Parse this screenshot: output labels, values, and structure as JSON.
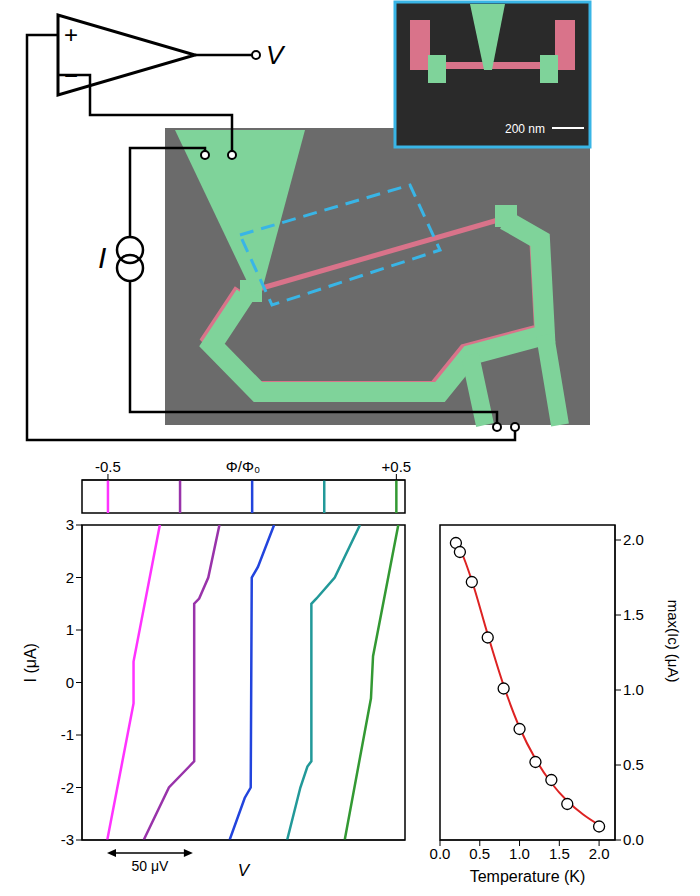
{
  "diagram": {
    "output_label": "V",
    "current_label": "I",
    "plus": "+",
    "minus": "−",
    "inset_scale_bar": "200 nm"
  },
  "chart_data": [
    {
      "type": "marker_strip",
      "xlabel": "Φ/Φ₀",
      "xlim": [
        -0.59,
        0.53
      ],
      "xticks": [
        -0.5,
        {
          "value": 0.5,
          "label": "+0.5"
        }
      ],
      "x": [
        -0.5,
        -0.25,
        0,
        0.25,
        0.5
      ],
      "colors": [
        "#ff33ff",
        "#9933aa",
        "#2244dd",
        "#229999",
        "#339933"
      ]
    },
    {
      "type": "line",
      "xlabel": "V",
      "ylabel": "I (μA)",
      "xlim": [
        0,
        188
      ],
      "ylim": [
        -3,
        3
      ],
      "yticks": [
        -3,
        -2,
        -1,
        0,
        1,
        2,
        3
      ],
      "tick_labels": "y",
      "scale_bar": {
        "label": "50 μV",
        "value": 50
      },
      "series": [
        {
          "color": "#ff33ff",
          "x": [
            14.7,
            30.0,
            30.0,
            45.3
          ],
          "values": [
            -3,
            -0.4,
            0.4,
            3
          ]
        },
        {
          "color": "#9933aa",
          "x": [
            35.9,
            50.6,
            62.4,
            65.3,
            65.3,
            68.2,
            73.5,
            80.0
          ],
          "values": [
            -3,
            -2,
            -1.6,
            -1.5,
            1.5,
            1.6,
            2,
            3
          ]
        },
        {
          "color": "#2244dd",
          "x": [
            85.9,
            94.7,
            98.2,
            98.8,
            102.4,
            111.8
          ],
          "values": [
            -3,
            -2.2,
            -2,
            2,
            2.2,
            3
          ]
        },
        {
          "color": "#229999",
          "x": [
            119.4,
            127.1,
            131.2,
            133.5,
            133.5,
            136.5,
            147.1,
            161.8
          ],
          "values": [
            -3,
            -2,
            -1.6,
            -1.5,
            1.5,
            1.6,
            2,
            3
          ]
        },
        {
          "color": "#339933",
          "x": [
            152.9,
            168.2,
            169.4,
            184.1
          ],
          "values": [
            -3,
            -0.3,
            0.5,
            3
          ]
        }
      ]
    },
    {
      "type": "scatter",
      "xlabel": "Temperature (K)",
      "ylabel": "max(Ic) (μA)",
      "xlim": [
        0,
        2.2
      ],
      "ylim": [
        0,
        2.1
      ],
      "xticks": [
        {
          "value": 0,
          "label": "0.0"
        },
        {
          "value": 0.5,
          "label": "0.5"
        },
        {
          "value": 1,
          "label": "1.0"
        },
        {
          "value": 1.5,
          "label": "1.5"
        },
        {
          "value": 2,
          "label": "2.0"
        }
      ],
      "yticks": [
        {
          "value": 0,
          "label": "0.0"
        },
        {
          "value": 0.5,
          "label": "0.5"
        },
        {
          "value": 1,
          "label": "1.0"
        },
        {
          "value": 1.5,
          "label": "1.5"
        },
        {
          "value": 2,
          "label": "2.0"
        }
      ],
      "marker": "open_circle",
      "x": [
        0.2,
        0.25,
        0.4,
        0.6,
        0.8,
        1.0,
        1.2,
        1.4,
        1.6,
        2.0
      ],
      "values": [
        1.98,
        1.92,
        1.72,
        1.35,
        1.01,
        0.74,
        0.52,
        0.4,
        0.24,
        0.09
      ],
      "fit": {
        "color": "#dd2222",
        "x": [
          0.2,
          0.3,
          0.4,
          0.6,
          0.8,
          1.0,
          1.2,
          1.4,
          1.6,
          1.8,
          2.0
        ],
        "values": [
          2.0,
          1.88,
          1.73,
          1.37,
          1.03,
          0.75,
          0.54,
          0.38,
          0.26,
          0.17,
          0.1
        ]
      }
    }
  ]
}
